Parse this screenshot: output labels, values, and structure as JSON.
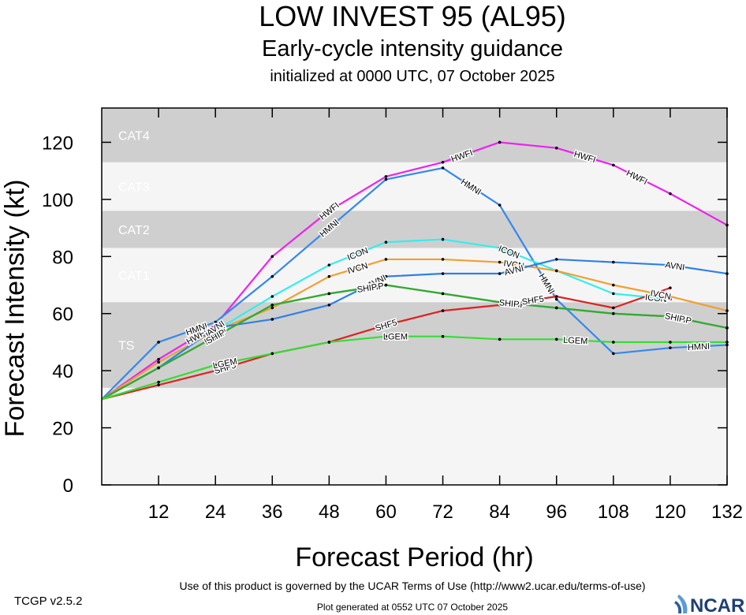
{
  "header": {
    "title": "LOW INVEST 95 (AL95)",
    "subtitle": "Early-cycle intensity guidance",
    "init": "initialized at 0000 UTC, 07 October 2025"
  },
  "footer": {
    "terms": "Use of this product is governed by the UCAR Terms of Use (http://www2.ucar.edu/terms-of-use)",
    "version": "TCGP v2.5.2",
    "generated": "Plot generated at 0552 UTC   07 October 2025",
    "logo_text": "NCAR"
  },
  "chart_data": {
    "type": "line",
    "xlabel": "Forecast Period (hr)",
    "ylabel": "Forecast Intensity (kt)",
    "xlim": [
      0,
      132
    ],
    "ylim": [
      0,
      132
    ],
    "xticks": [
      12,
      24,
      36,
      48,
      60,
      72,
      84,
      96,
      108,
      120,
      132
    ],
    "yticks": [
      0,
      20,
      40,
      60,
      80,
      100,
      120
    ],
    "grid": false,
    "bands": [
      {
        "label": "TS",
        "from": 34,
        "to": 64,
        "color": "#cfcfcf"
      },
      {
        "label": "CAT1",
        "from": 64,
        "to": 83,
        "color": "#f5f5f5"
      },
      {
        "label": "CAT2",
        "from": 83,
        "to": 96,
        "color": "#cfcfcf"
      },
      {
        "label": "CAT3",
        "from": 96,
        "to": 113,
        "color": "#f5f5f5"
      },
      {
        "label": "CAT4",
        "from": 113,
        "to": 137,
        "color": "#cfcfcf"
      }
    ],
    "series": [
      {
        "name": "HWFI",
        "color": "#ee22ee",
        "x": [
          0,
          12,
          24,
          36,
          48,
          60,
          72,
          84,
          96,
          108,
          120,
          132
        ],
        "y": [
          30,
          44,
          56,
          80,
          96,
          108,
          113,
          120,
          118,
          112,
          102,
          91
        ],
        "label_at": [
          20,
          48,
          76,
          102,
          113
        ]
      },
      {
        "name": "HMNI",
        "color": "#3388ee",
        "x": [
          0,
          12,
          24,
          36,
          48,
          60,
          72,
          84,
          96,
          108,
          120,
          132
        ],
        "y": [
          30,
          50,
          57,
          73,
          90,
          107,
          111,
          98,
          65,
          46,
          48,
          49
        ],
        "label_at": [
          20,
          48,
          78,
          94,
          126
        ]
      },
      {
        "name": "ICON",
        "color": "#33eeee",
        "x": [
          0,
          12,
          24,
          36,
          48,
          60,
          72,
          84,
          96,
          108,
          120
        ],
        "y": [
          30,
          43,
          54,
          66,
          77,
          85,
          86,
          83,
          75,
          67,
          65
        ],
        "label_at": [
          24,
          54,
          86,
          117
        ]
      },
      {
        "name": "IVCN",
        "color": "#f0a030",
        "x": [
          0,
          12,
          24,
          36,
          48,
          60,
          72,
          84,
          96,
          108,
          120,
          132
        ],
        "y": [
          30,
          43,
          54,
          62,
          73,
          79,
          79,
          78,
          75,
          70,
          66,
          61
        ],
        "label_at": [
          24,
          54,
          87,
          118
        ]
      },
      {
        "name": "AVNI",
        "color": "#2f7fe8",
        "x": [
          0,
          12,
          24,
          36,
          48,
          60,
          72,
          84,
          96,
          108,
          120,
          132
        ],
        "y": [
          30,
          41,
          55,
          58,
          63,
          73,
          74,
          74,
          79,
          78,
          77,
          74
        ],
        "label_at": [
          24,
          58,
          87,
          121
        ]
      },
      {
        "name": "DSHP",
        "color": "#33aa33",
        "x": [
          0,
          12,
          24,
          36,
          48,
          60,
          72,
          84,
          96,
          108,
          120,
          132
        ],
        "y": [
          30,
          41,
          52,
          63,
          67,
          70,
          67,
          64,
          62,
          60,
          59,
          55
        ],
        "label_at": [
          24,
          57,
          87,
          122
        ]
      },
      {
        "name": "SHIP",
        "color": "#33aa33",
        "x": [
          0,
          12,
          24,
          36,
          48,
          60,
          72,
          84,
          96,
          108,
          120,
          132
        ],
        "y": [
          30,
          41,
          52,
          63,
          67,
          70,
          67,
          64,
          62,
          60,
          59,
          55
        ],
        "label_at": [
          24,
          56,
          86,
          121
        ]
      },
      {
        "name": "SHF5",
        "color": "#dd2222",
        "x": [
          0,
          12,
          24,
          36,
          48,
          60,
          72,
          84,
          96,
          108,
          120
        ],
        "y": [
          30,
          35,
          40,
          46,
          50,
          56,
          61,
          63,
          66,
          62,
          69
        ],
        "label_at": [
          26,
          60,
          91
        ]
      },
      {
        "name": "LGEM",
        "color": "#33dd33",
        "x": [
          0,
          12,
          24,
          36,
          48,
          60,
          72,
          84,
          96,
          108,
          120,
          132
        ],
        "y": [
          30,
          36,
          42,
          46,
          50,
          52,
          52,
          51,
          51,
          50,
          50,
          50
        ],
        "label_at": [
          26,
          62,
          100
        ]
      }
    ]
  }
}
